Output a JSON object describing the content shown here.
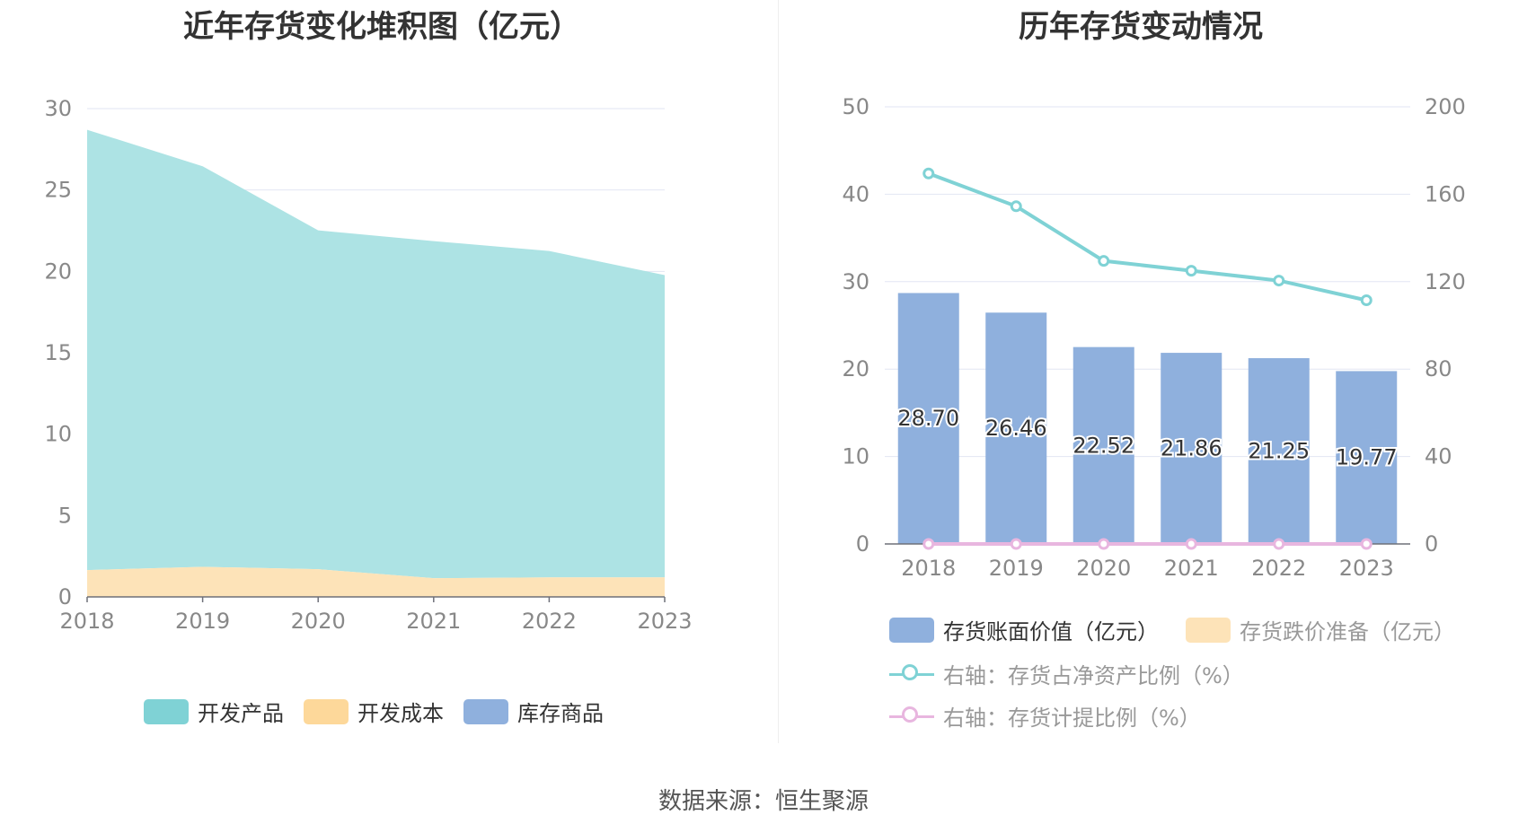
{
  "source": "数据来源：恒生聚源",
  "colors": {
    "kaifa_chanpin": "#ade3e4",
    "kaifa_chanpin_legend": "#7fd2d5",
    "kaifa_chengben": "#fde3b8",
    "kaifa_chengben_legend": "#fdd89a",
    "kucun_shangpin": "#8fb0dd",
    "bar": "#8fb0dd",
    "ratio_line": "#7fd2d5",
    "provision_line": "#e8b6df",
    "grid": "#e2e6f3",
    "axis_text": "#888888"
  },
  "left_legend": [
    {
      "name": "开发产品"
    },
    {
      "name": "开发成本"
    },
    {
      "name": "库存商品"
    }
  ],
  "right_legend": [
    {
      "name": "存货账面价值（亿元）"
    },
    {
      "name": "存货跌价准备（亿元）"
    },
    {
      "name": "右轴：存货占净资产比例（%）"
    },
    {
      "name": "右轴：存货计提比例（%）"
    }
  ],
  "chart_data": [
    {
      "type": "area",
      "stacked": true,
      "title": "近年存货变化堆积图（亿元）",
      "categories": [
        "2018",
        "2019",
        "2020",
        "2021",
        "2022",
        "2023"
      ],
      "ylim": [
        0,
        30
      ],
      "yticks": [
        0,
        5,
        10,
        15,
        20,
        25,
        30
      ],
      "series": [
        {
          "name": "开发成本",
          "values": [
            1.65,
            1.85,
            1.7,
            1.15,
            1.2,
            1.2
          ]
        },
        {
          "name": "开发产品",
          "values": [
            27.05,
            24.61,
            20.82,
            20.71,
            20.05,
            18.57
          ]
        },
        {
          "name": "库存商品",
          "values": [
            0,
            0,
            0,
            0,
            0,
            0
          ]
        }
      ],
      "legend_position": "bottom"
    },
    {
      "type": "bar",
      "title": "历年存货变动情况",
      "categories": [
        "2018",
        "2019",
        "2020",
        "2021",
        "2022",
        "2023"
      ],
      "ylim": [
        0,
        50
      ],
      "yticks": [
        0,
        10,
        20,
        30,
        40,
        50
      ],
      "y2lim": [
        0,
        200
      ],
      "y2ticks": [
        0,
        40,
        80,
        120,
        160,
        200
      ],
      "series": [
        {
          "name": "存货账面价值（亿元）",
          "axis": "left",
          "type": "bar",
          "values": [
            28.7,
            26.46,
            22.52,
            21.86,
            21.25,
            19.77
          ],
          "labels": [
            "28.70",
            "26.46",
            "22.52",
            "21.86",
            "21.25",
            "19.77"
          ]
        },
        {
          "name": "存货跌价准备（亿元）",
          "axis": "left",
          "type": "bar",
          "values": [
            0,
            0,
            0,
            0,
            0,
            0
          ]
        },
        {
          "name": "右轴：存货占净资产比例（%）",
          "axis": "right",
          "type": "line",
          "values": [
            169.5,
            154.5,
            129.5,
            125,
            120.5,
            111.5
          ]
        },
        {
          "name": "右轴：存货计提比例（%）",
          "axis": "right",
          "type": "line",
          "values": [
            0,
            0,
            0,
            0,
            0,
            0
          ]
        }
      ],
      "legend_position": "bottom"
    }
  ]
}
